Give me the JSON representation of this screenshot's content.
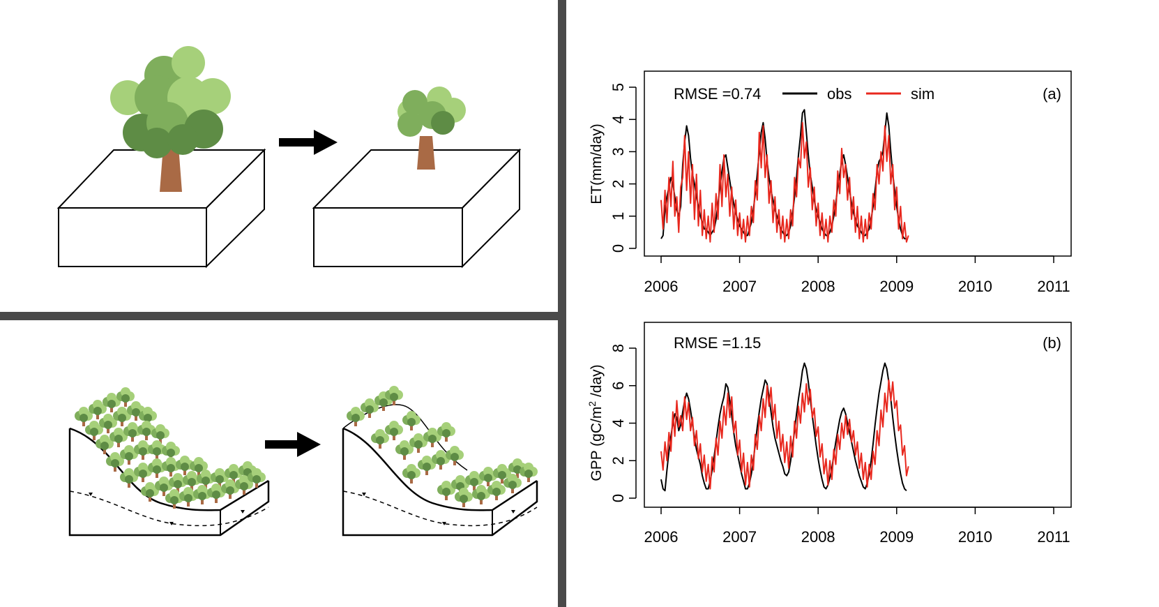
{
  "colors": {
    "obs": "#000000",
    "sim": "#e8281e",
    "divider": "#4a4a4a",
    "leaf_light": "#a6d07a",
    "leaf_mid": "#7fae5c",
    "leaf_dark": "#5e8c45",
    "trunk": "#a96a45"
  },
  "legend": {
    "obs": "obs",
    "sim": "sim"
  },
  "chart_data": [
    {
      "type": "line",
      "panel_label": "(a)",
      "annotation": "RMSE =0.74",
      "ylabel": "ET(mm/day)",
      "xlabel": "",
      "xlim": [
        2006,
        2011
      ],
      "ylim": [
        0,
        5
      ],
      "x_ticks": [
        2006,
        2007,
        2008,
        2009,
        2010,
        2011
      ],
      "y_ticks": [
        0,
        1,
        2,
        3,
        4,
        5
      ],
      "sample_step_years": 0.025,
      "series": [
        {
          "name": "obs",
          "values": [
            0.3,
            0.4,
            1.2,
            1.6,
            1.9,
            2.2,
            2.0,
            1.6,
            1.2,
            1.0,
            1.3,
            2.6,
            3.3,
            3.8,
            3.5,
            2.8,
            2.3,
            2.0,
            1.6,
            1.3,
            1.0,
            0.8,
            0.6,
            0.6,
            0.5,
            0.4,
            0.5,
            0.6,
            0.9,
            1.4,
            1.9,
            2.4,
            2.8,
            2.9,
            2.5,
            2.1,
            1.7,
            1.4,
            1.1,
            0.9,
            0.7,
            0.6,
            0.5,
            0.4,
            0.4,
            0.6,
            0.8,
            1.2,
            1.7,
            2.3,
            3.0,
            3.6,
            3.9,
            3.4,
            2.7,
            2.2,
            1.8,
            1.5,
            1.2,
            1.0,
            0.8,
            0.6,
            0.5,
            0.4,
            0.4,
            0.5,
            0.7,
            1.1,
            1.6,
            2.2,
            2.9,
            3.5,
            4.2,
            4.3,
            3.6,
            2.9,
            2.3,
            1.9,
            1.5,
            1.2,
            1.0,
            0.8,
            0.6,
            0.5,
            0.4,
            0.4,
            0.5,
            0.7,
            1.0,
            1.4,
            1.9,
            2.3,
            2.7,
            2.9,
            2.6,
            2.2,
            1.8,
            1.4,
            1.1,
            0.9,
            0.7,
            0.6,
            0.5,
            0.4,
            0.4,
            0.5,
            0.6,
            0.9,
            1.3,
            1.8,
            2.4,
            2.7,
            2.8,
            3.0,
            3.6,
            4.2,
            3.8,
            3.0,
            2.3,
            1.8,
            1.3,
            0.9,
            0.6,
            0.4,
            0.3,
            0.3
          ]
        },
        {
          "name": "sim",
          "values": [
            1.5,
            0.6,
            1.8,
            0.8,
            2.2,
            1.3,
            2.7,
            1.0,
            1.6,
            0.5,
            1.9,
            2.2,
            3.5,
            1.8,
            3.0,
            1.4,
            2.6,
            0.9,
            2.3,
            0.7,
            1.8,
            0.4,
            1.2,
            0.3,
            1.0,
            0.2,
            1.4,
            0.5,
            1.7,
            0.9,
            2.6,
            1.3,
            2.9,
            1.6,
            2.3,
            1.0,
            1.9,
            0.6,
            1.5,
            0.4,
            1.1,
            0.3,
            0.9,
            0.2,
            1.0,
            0.4,
            1.3,
            0.8,
            2.1,
            1.5,
            3.6,
            2.5,
            3.8,
            2.2,
            2.9,
            1.4,
            2.1,
            0.8,
            1.6,
            0.5,
            1.2,
            0.3,
            1.0,
            0.2,
            0.9,
            0.3,
            1.2,
            0.7,
            2.2,
            1.6,
            2.8,
            2.5,
            3.9,
            2.8,
            3.3,
            1.9,
            2.5,
            1.2,
            1.9,
            0.7,
            1.4,
            0.4,
            1.1,
            0.3,
            0.9,
            0.2,
            1.0,
            0.5,
            1.5,
            1.0,
            2.4,
            1.7,
            3.1,
            2.2,
            2.6,
            1.5,
            2.2,
            0.9,
            1.6,
            0.5,
            1.3,
            0.3,
            1.0,
            0.2,
            0.9,
            0.3,
            1.1,
            0.6,
            1.7,
            1.2,
            2.6,
            2.0,
            3.0,
            2.4,
            3.8,
            2.7,
            3.5,
            2.0,
            2.6,
            1.2,
            1.9,
            0.6,
            1.3,
            0.3,
            0.8,
            0.2,
            0.4
          ]
        }
      ]
    },
    {
      "type": "line",
      "panel_label": "(b)",
      "annotation": "RMSE =1.15",
      "ylabel": "GPP (gC/m",
      "ylabel_sup": "2",
      "ylabel_tail": " /day)",
      "xlabel": "",
      "xlim": [
        2006,
        2011
      ],
      "ylim": [
        0,
        8
      ],
      "x_ticks": [
        2006,
        2007,
        2008,
        2009,
        2010,
        2011
      ],
      "y_ticks": [
        0,
        2,
        4,
        6,
        8
      ],
      "sample_step_years": 0.025,
      "series": [
        {
          "name": "obs",
          "values": [
            1.0,
            0.5,
            0.4,
            1.5,
            2.5,
            3.3,
            4.0,
            4.5,
            4.3,
            3.6,
            3.9,
            4.6,
            5.2,
            5.6,
            5.3,
            4.7,
            4.0,
            3.2,
            2.6,
            2.2,
            1.8,
            1.2,
            0.8,
            0.5,
            0.5,
            0.9,
            1.5,
            2.2,
            3.0,
            3.8,
            4.5,
            5.0,
            5.4,
            6.1,
            5.9,
            5.2,
            4.4,
            3.5,
            2.8,
            2.3,
            1.8,
            1.3,
            0.9,
            0.5,
            0.5,
            0.8,
            1.3,
            2.0,
            2.9,
            3.8,
            4.6,
            5.3,
            5.8,
            6.3,
            6.1,
            5.4,
            4.6,
            3.8,
            3.2,
            2.8,
            2.4,
            2.0,
            1.7,
            1.3,
            1.2,
            1.4,
            2.0,
            2.8,
            3.6,
            4.5,
            5.3,
            6.0,
            6.8,
            7.2,
            6.9,
            6.2,
            5.3,
            4.4,
            3.6,
            2.8,
            2.1,
            1.5,
            1.0,
            0.6,
            0.5,
            0.7,
            1.1,
            1.6,
            2.3,
            3.0,
            3.6,
            4.2,
            4.6,
            4.8,
            4.5,
            4.0,
            3.5,
            3.0,
            2.5,
            2.0,
            1.6,
            1.2,
            0.9,
            0.6,
            0.5,
            0.8,
            1.3,
            2.0,
            2.9,
            3.9,
            4.8,
            5.6,
            6.2,
            6.8,
            7.2,
            6.9,
            6.2,
            5.3,
            4.3,
            3.4,
            2.6,
            1.9,
            1.3,
            0.8,
            0.5,
            0.4
          ]
        },
        {
          "name": "sim",
          "values": [
            2.5,
            1.5,
            3.0,
            2.0,
            3.5,
            2.5,
            4.6,
            3.3,
            5.2,
            3.8,
            4.4,
            3.6,
            5.4,
            4.2,
            5.1,
            3.6,
            4.3,
            2.8,
            3.6,
            2.1,
            2.9,
            1.4,
            2.3,
            0.9,
            1.8,
            0.5,
            2.2,
            1.4,
            3.2,
            2.3,
            4.1,
            3.2,
            4.9,
            3.9,
            5.6,
            4.3,
            5.4,
            3.5,
            4.1,
            2.3,
            3.1,
            1.4,
            2.4,
            0.7,
            1.9,
            0.6,
            2.3,
            1.5,
            3.4,
            2.6,
            4.4,
            3.6,
            5.3,
            4.3,
            6.0,
            4.9,
            5.9,
            4.2,
            5.0,
            3.2,
            4.1,
            2.5,
            3.4,
            1.9,
            3.0,
            1.6,
            3.3,
            2.2,
            4.1,
            3.2,
            4.9,
            4.0,
            5.6,
            4.6,
            6.1,
            5.0,
            5.8,
            4.3,
            4.8,
            3.3,
            3.8,
            2.2,
            2.9,
            1.3,
            2.1,
            0.7,
            2.0,
            1.0,
            2.6,
            1.8,
            3.4,
            2.6,
            4.0,
            3.2,
            4.4,
            3.4,
            4.2,
            3.0,
            3.6,
            2.3,
            3.0,
            1.6,
            2.4,
            1.0,
            1.9,
            0.6,
            1.8,
            1.0,
            2.5,
            1.8,
            3.6,
            2.8,
            4.7,
            3.8,
            5.6,
            4.6,
            6.3,
            5.2,
            6.2,
            4.8,
            5.2,
            3.6,
            3.9,
            2.3,
            2.8,
            1.2,
            1.7
          ]
        }
      ]
    }
  ]
}
